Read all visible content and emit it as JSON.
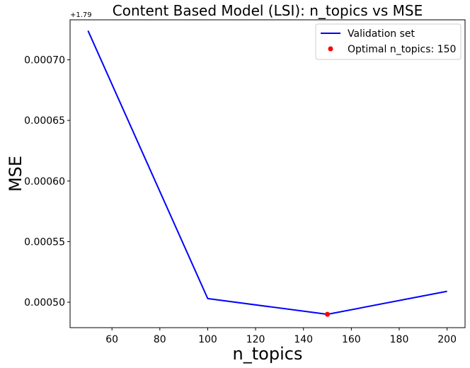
{
  "chart_data": {
    "type": "line",
    "title": "Content Based Model (LSI): n_topics vs MSE",
    "xlabel": "n_topics",
    "ylabel": "MSE",
    "y_offset_label": "+1.79",
    "y_offset": 1.79,
    "xlim": [
      42.5,
      207.5
    ],
    "ylim": [
      0.000479,
      0.000733
    ],
    "x_ticks": [
      60,
      80,
      100,
      120,
      140,
      160,
      180,
      200
    ],
    "y_ticks": [
      0.0005,
      0.00055,
      0.0006,
      0.00065,
      0.0007
    ],
    "y_tick_labels": [
      "0.00050",
      "0.00055",
      "0.00060",
      "0.00065",
      "0.00070"
    ],
    "grid": false,
    "legend_position": "top-right",
    "series": [
      {
        "name": "Validation set",
        "color": "#0000ff",
        "marker": "none",
        "x": [
          50,
          100,
          150,
          200
        ],
        "y": [
          0.000724,
          0.000503,
          0.00049,
          0.000509
        ]
      }
    ],
    "highlight_point": {
      "name": "Optimal n_topics: 150",
      "color": "#ff0000",
      "x": 150,
      "y": 0.00049
    }
  }
}
